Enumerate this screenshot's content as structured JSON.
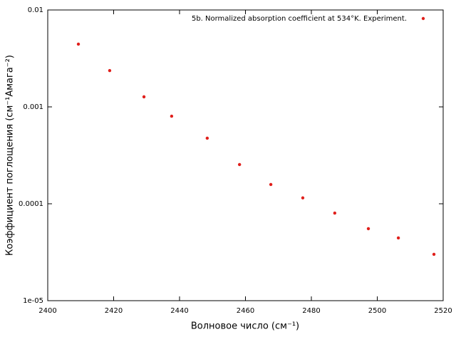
{
  "chart_data": {
    "type": "scatter",
    "x_label": "Волновое число (см⁻¹)",
    "y_label": "Коэффициент поглощения (см⁻¹Амага⁻²)",
    "series": [
      {
        "name": "5b. Normalized absorption coefficient at 534°K. Experiment.",
        "color": "#e0201c",
        "x": [
          2409.3,
          2418.8,
          2429.2,
          2437.6,
          2448.4,
          2458.2,
          2467.7,
          2477.4,
          2487.1,
          2497.3,
          2506.4,
          2517.2
        ],
        "values": [
          0.00444,
          0.00237,
          0.00127,
          0.000802,
          0.000475,
          0.000254,
          0.000158,
          0.000115,
          8.02e-05,
          5.53e-05,
          4.44e-05,
          3.01e-05
        ]
      }
    ],
    "xlim": [
      2400,
      2520
    ],
    "xticks": [
      2400,
      2420,
      2440,
      2460,
      2480,
      2500,
      2520
    ],
    "ylim": [
      1e-05,
      0.01
    ],
    "yticks": [
      {
        "value": 1e-05,
        "label": "1e-05"
      },
      0.0001,
      0.001,
      0.01
    ],
    "log_y": true,
    "legend": "top-right"
  }
}
